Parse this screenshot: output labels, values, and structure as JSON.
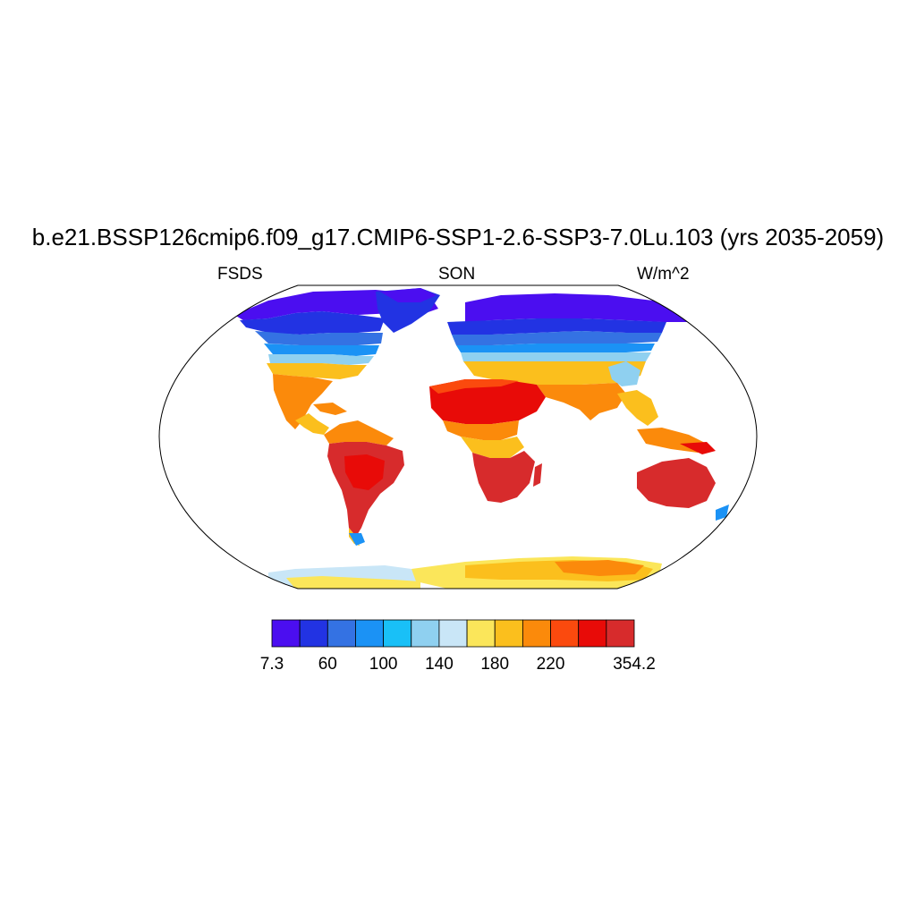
{
  "title": "b.e21.BSSP126cmip6.f09_g17.CMIP6-SSP1-2.6-SSP3-7.0Lu.103 (yrs 2035-2059)",
  "left_label": "FSDS",
  "center_label": "SON",
  "right_label": "W/m^2",
  "colorbar": {
    "colors": [
      "#4b0ef0",
      "#2233e3",
      "#3472e3",
      "#1b92f5",
      "#19c0f7",
      "#8fd0f0",
      "#c9e6f7",
      "#fbe65a",
      "#fbbf1d",
      "#fb8a0b",
      "#fb4a0e",
      "#e80b08",
      "#d72b2c"
    ],
    "labels": [
      "7.3",
      "60",
      "100",
      "140",
      "180",
      "220",
      "354.2"
    ]
  },
  "map": {
    "projection": "Robinson",
    "variable": "FSDS",
    "season": "SON",
    "ocean_color": "#ffffff"
  }
}
